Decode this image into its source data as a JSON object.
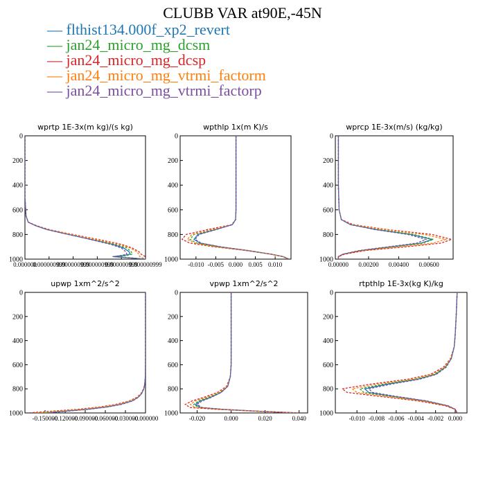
{
  "title": "CLUBB VAR at90E,-45N",
  "legend": [
    {
      "label": "— flthist134.000f_xp2_revert",
      "color": "#1f77b4"
    },
    {
      "label": "— jan24_micro_mg_dcsm",
      "color": "#2ca02c"
    },
    {
      "label": "— jan24_micro_mg_dcsp",
      "color": "#d62728"
    },
    {
      "label": "— jan24_micro_mg_vtrmi_factorm",
      "color": "#ff7f0e"
    },
    {
      "label": "— jan24_micro_mg_vtrmi_factorp",
      "color": "#7b4fa0"
    }
  ],
  "chart_data": [
    {
      "type": "line",
      "title": "wprtp  1E-3x(m kg)/(s kg)",
      "ylim": [
        1000,
        0
      ],
      "yticks": [
        0,
        200,
        400,
        600,
        800,
        1000
      ],
      "xlim": [
        0,
        1.1e-06
      ],
      "xtick_labels": [
        "0.000000",
        "0.000000999",
        "0.000000999",
        "0.000000999",
        "0.000000999",
        "0.000000999"
      ],
      "y": [
        0,
        500,
        650,
        700,
        730,
        760,
        790,
        820,
        850,
        880,
        910,
        940,
        960,
        970,
        980,
        1000
      ],
      "series": [
        {
          "color": "#1f77b4",
          "values": [
            0,
            0,
            1e-08,
            3e-08,
            1e-07,
            2e-07,
            3.5e-07,
            5e-07,
            6.5e-07,
            8e-07,
            9e-07,
            9.5e-07,
            9.6e-07,
            9e-07,
            8e-07,
            1.1e-06
          ]
        },
        {
          "color": "#2ca02c",
          "values": [
            0,
            0,
            1e-08,
            3e-08,
            1e-07,
            2.1e-07,
            3.6e-07,
            5.2e-07,
            6.7e-07,
            8.2e-07,
            9.3e-07,
            9.7e-07,
            9.8e-07,
            9.3e-07,
            8.5e-07,
            1.1e-06
          ]
        },
        {
          "color": "#d62728",
          "values": [
            0,
            0,
            1e-08,
            3e-08,
            1.1e-07,
            2.2e-07,
            3.8e-07,
            5.5e-07,
            7.2e-07,
            8.8e-07,
            9.8e-07,
            1.04e-06,
            1.06e-06,
            1.08e-06,
            1.1e-06,
            1.1e-06
          ]
        },
        {
          "color": "#ff7f0e",
          "values": [
            0,
            0,
            1e-08,
            3e-08,
            1e-07,
            2.1e-07,
            3.7e-07,
            5.3e-07,
            6.9e-07,
            8.5e-07,
            9.6e-07,
            1.02e-06,
            1.04e-06,
            1.04e-06,
            1.05e-06,
            1.1e-06
          ]
        },
        {
          "color": "#7b4fa0",
          "values": [
            0,
            0,
            1e-08,
            3e-08,
            1e-07,
            2e-07,
            3.4e-07,
            5e-07,
            6.4e-07,
            7.8e-07,
            8.8e-07,
            9.2e-07,
            9.3e-07,
            8.8e-07,
            8e-07,
            1.1e-06
          ]
        }
      ]
    },
    {
      "type": "line",
      "title": "wpthlp  1x(m K)/s",
      "ylim": [
        1000,
        0
      ],
      "yticks": [
        0,
        200,
        400,
        600,
        800,
        1000
      ],
      "xlim": [
        -0.014,
        0.014
      ],
      "xtick_labels": [
        "-0.010",
        "-0.005",
        "0.000",
        "0.005",
        "0.010"
      ],
      "xtick_values": [
        -0.01,
        -0.005,
        0,
        0.005,
        0.01
      ],
      "y": [
        0,
        400,
        600,
        680,
        720,
        760,
        800,
        840,
        870,
        900,
        930,
        960,
        980,
        1000
      ],
      "series": [
        {
          "color": "#1f77b4",
          "values": [
            0.0001,
            0.0001,
            0.0001,
            0,
            -0.0008,
            -0.005,
            -0.0095,
            -0.0105,
            -0.009,
            -0.004,
            0.003,
            0.009,
            0.012,
            0.0135
          ]
        },
        {
          "color": "#2ca02c",
          "values": [
            0.0001,
            0.0001,
            0.0001,
            0,
            -0.0009,
            -0.0055,
            -0.0105,
            -0.0115,
            -0.0098,
            -0.0045,
            0.003,
            0.009,
            0.012,
            0.0135
          ]
        },
        {
          "color": "#d62728",
          "values": [
            0.0001,
            0.0001,
            0.0001,
            0,
            -0.001,
            -0.007,
            -0.0125,
            -0.0135,
            -0.0115,
            -0.0055,
            0.0025,
            0.009,
            0.012,
            0.0135
          ]
        },
        {
          "color": "#ff7f0e",
          "values": [
            0.0001,
            0.0001,
            0.0001,
            0,
            -0.0009,
            -0.006,
            -0.011,
            -0.0122,
            -0.0103,
            -0.0048,
            0.003,
            0.009,
            0.012,
            0.0135
          ]
        },
        {
          "color": "#7b4fa0",
          "values": [
            0.0001,
            0.0001,
            0.0001,
            0,
            -0.0008,
            -0.0048,
            -0.0092,
            -0.0102,
            -0.0087,
            -0.0038,
            0.003,
            0.009,
            0.012,
            0.0135
          ]
        }
      ]
    },
    {
      "type": "line",
      "title": "wprcp  1E-3x(m/s) (kg/kg)",
      "ylim": [
        1000,
        0
      ],
      "yticks": [
        0,
        200,
        400,
        600,
        800,
        1000
      ],
      "xlim": [
        -0.0002,
        0.0076
      ],
      "xtick_labels": [
        "0.00000",
        "0.00200",
        "0.00400",
        "0.00600"
      ],
      "xtick_values": [
        0,
        0.002,
        0.004,
        0.006
      ],
      "y": [
        0,
        400,
        600,
        680,
        720,
        760,
        800,
        840,
        870,
        900,
        930,
        960,
        980,
        1000
      ],
      "series": [
        {
          "color": "#1f77b4",
          "values": [
            0,
            0,
            5e-05,
            0.0002,
            0.0008,
            0.0025,
            0.0048,
            0.0062,
            0.0055,
            0.0035,
            0.0015,
            0.0003,
            0,
            0
          ]
        },
        {
          "color": "#2ca02c",
          "values": [
            0,
            0,
            5e-05,
            0.0002,
            0.0008,
            0.0026,
            0.005,
            0.0063,
            0.0056,
            0.0036,
            0.0015,
            0.0003,
            0,
            0
          ]
        },
        {
          "color": "#d62728",
          "values": [
            0,
            0,
            5e-05,
            0.0002,
            0.001,
            0.0032,
            0.0062,
            0.0075,
            0.0068,
            0.0045,
            0.0018,
            0.0004,
            0,
            0
          ]
        },
        {
          "color": "#ff7f0e",
          "values": [
            0,
            0,
            5e-05,
            0.0002,
            0.0009,
            0.003,
            0.0057,
            0.0071,
            0.0063,
            0.004,
            0.0017,
            0.0003,
            0,
            0
          ]
        },
        {
          "color": "#7b4fa0",
          "values": [
            0,
            0,
            5e-05,
            0.0002,
            0.0008,
            0.0024,
            0.0046,
            0.0058,
            0.0052,
            0.0033,
            0.0014,
            0.0003,
            0,
            0
          ]
        }
      ]
    },
    {
      "type": "line",
      "title": "upwp  1xm^2/s^2",
      "ylim": [
        1000,
        0
      ],
      "yticks": [
        0,
        200,
        400,
        600,
        800,
        1000
      ],
      "xlim": [
        -0.18,
        0
      ],
      "xtick_labels": [
        "-0.150000",
        "-0.120000",
        "-0.090000",
        "-0.060000",
        "-0.030000",
        "-0.000000"
      ],
      "xtick_values": [
        -0.15,
        -0.12,
        -0.09,
        -0.06,
        -0.03,
        0
      ],
      "y": [
        0,
        400,
        600,
        700,
        760,
        800,
        840,
        870,
        900,
        930,
        950,
        970,
        985,
        1000
      ],
      "series": [
        {
          "color": "#1f77b4",
          "values": [
            0,
            0,
            0,
            -0.0003,
            -0.001,
            -0.0025,
            -0.006,
            -0.011,
            -0.02,
            -0.038,
            -0.058,
            -0.088,
            -0.12,
            -0.15
          ]
        },
        {
          "color": "#2ca02c",
          "values": [
            0,
            0,
            0,
            -0.0003,
            -0.001,
            -0.0026,
            -0.0062,
            -0.0115,
            -0.021,
            -0.04,
            -0.06,
            -0.091,
            -0.125,
            -0.155
          ]
        },
        {
          "color": "#d62728",
          "values": [
            0,
            0,
            0,
            -0.0003,
            -0.0012,
            -0.003,
            -0.007,
            -0.013,
            -0.024,
            -0.045,
            -0.068,
            -0.102,
            -0.14,
            -0.175
          ]
        },
        {
          "color": "#ff7f0e",
          "values": [
            0,
            0,
            0,
            -0.0003,
            -0.0011,
            -0.0028,
            -0.0066,
            -0.012,
            -0.022,
            -0.042,
            -0.064,
            -0.096,
            -0.132,
            -0.165
          ]
        },
        {
          "color": "#7b4fa0",
          "values": [
            0,
            0,
            0,
            -0.0003,
            -0.001,
            -0.0024,
            -0.0058,
            -0.0105,
            -0.019,
            -0.036,
            -0.056,
            -0.085,
            -0.116,
            -0.145
          ]
        }
      ]
    },
    {
      "type": "line",
      "title": "vpwp  1xm^2/s^2",
      "ylim": [
        1000,
        0
      ],
      "yticks": [
        0,
        200,
        400,
        600,
        800,
        1000
      ],
      "xlim": [
        -0.03,
        0.045
      ],
      "xtick_labels": [
        "-0.020",
        "0.000",
        "0.020",
        "0.040"
      ],
      "xtick_values": [
        -0.02,
        0,
        0.02,
        0.04
      ],
      "y": [
        0,
        400,
        600,
        700,
        780,
        830,
        870,
        900,
        930,
        955,
        970,
        985,
        1000
      ],
      "series": [
        {
          "color": "#1f77b4",
          "values": [
            0,
            0,
            0,
            -0.0005,
            -0.002,
            -0.006,
            -0.012,
            -0.018,
            -0.021,
            -0.018,
            -0.005,
            0.015,
            0.04
          ]
        },
        {
          "color": "#2ca02c",
          "values": [
            0,
            0,
            0,
            -0.0005,
            -0.0022,
            -0.0065,
            -0.013,
            -0.019,
            -0.022,
            -0.019,
            -0.006,
            0.015,
            0.04
          ]
        },
        {
          "color": "#d62728",
          "values": [
            0,
            0,
            0,
            -0.0005,
            -0.0028,
            -0.008,
            -0.016,
            -0.023,
            -0.027,
            -0.024,
            -0.008,
            0.014,
            0.04
          ]
        },
        {
          "color": "#ff7f0e",
          "values": [
            0,
            0,
            0,
            -0.0005,
            -0.0025,
            -0.0072,
            -0.0145,
            -0.021,
            -0.024,
            -0.021,
            -0.007,
            0.014,
            0.04
          ]
        },
        {
          "color": "#7b4fa0",
          "values": [
            0,
            0,
            0,
            -0.0005,
            -0.002,
            -0.0058,
            -0.0115,
            -0.017,
            -0.02,
            -0.017,
            -0.005,
            0.015,
            0.04
          ]
        }
      ]
    },
    {
      "type": "line",
      "title": "rtpthlp  1E-3x(kg K)/kg",
      "ylim": [
        1000,
        0
      ],
      "yticks": [
        0,
        200,
        400,
        600,
        800,
        1000
      ],
      "xlim": [
        -0.0122,
        0.0012
      ],
      "xtick_labels": [
        "-0.010",
        "-0.008",
        "-0.006",
        "-0.004",
        "-0.002",
        "0.000"
      ],
      "xtick_values": [
        -0.01,
        -0.008,
        -0.006,
        -0.004,
        -0.002,
        0
      ],
      "y": [
        0,
        200,
        350,
        450,
        550,
        620,
        680,
        720,
        760,
        800,
        830,
        860,
        900,
        940,
        970,
        1000
      ],
      "series": [
        {
          "color": "#1f77b4",
          "values": [
            0.0002,
            0.0001,
            0,
            -0.0001,
            -0.0004,
            -0.001,
            -0.002,
            -0.0038,
            -0.0068,
            -0.0092,
            -0.0088,
            -0.0065,
            -0.003,
            -0.0008,
            0,
            0.0002
          ]
        },
        {
          "color": "#2ca02c",
          "values": [
            0.0002,
            0.0001,
            0,
            -0.0001,
            -0.0004,
            -0.001,
            -0.0021,
            -0.004,
            -0.0072,
            -0.0097,
            -0.0093,
            -0.0068,
            -0.0032,
            -0.0008,
            0,
            0.0002
          ]
        },
        {
          "color": "#d62728",
          "values": [
            0.0002,
            0.0001,
            0,
            -0.0001,
            -0.0005,
            -0.0012,
            -0.0025,
            -0.0048,
            -0.0085,
            -0.0115,
            -0.011,
            -0.008,
            -0.0038,
            -0.001,
            0,
            0.0002
          ]
        },
        {
          "color": "#ff7f0e",
          "values": [
            0.0002,
            0.0001,
            0,
            -0.0001,
            -0.0005,
            -0.0011,
            -0.0023,
            -0.0044,
            -0.0078,
            -0.0105,
            -0.01,
            -0.0073,
            -0.0034,
            -0.0009,
            0,
            0.0002
          ]
        },
        {
          "color": "#7b4fa0",
          "values": [
            0.0002,
            0.0001,
            0,
            -0.0001,
            -0.0004,
            -0.0009,
            -0.0019,
            -0.0036,
            -0.0064,
            -0.0088,
            -0.0084,
            -0.0062,
            -0.0029,
            -0.0007,
            0,
            0.0002
          ]
        }
      ]
    }
  ]
}
